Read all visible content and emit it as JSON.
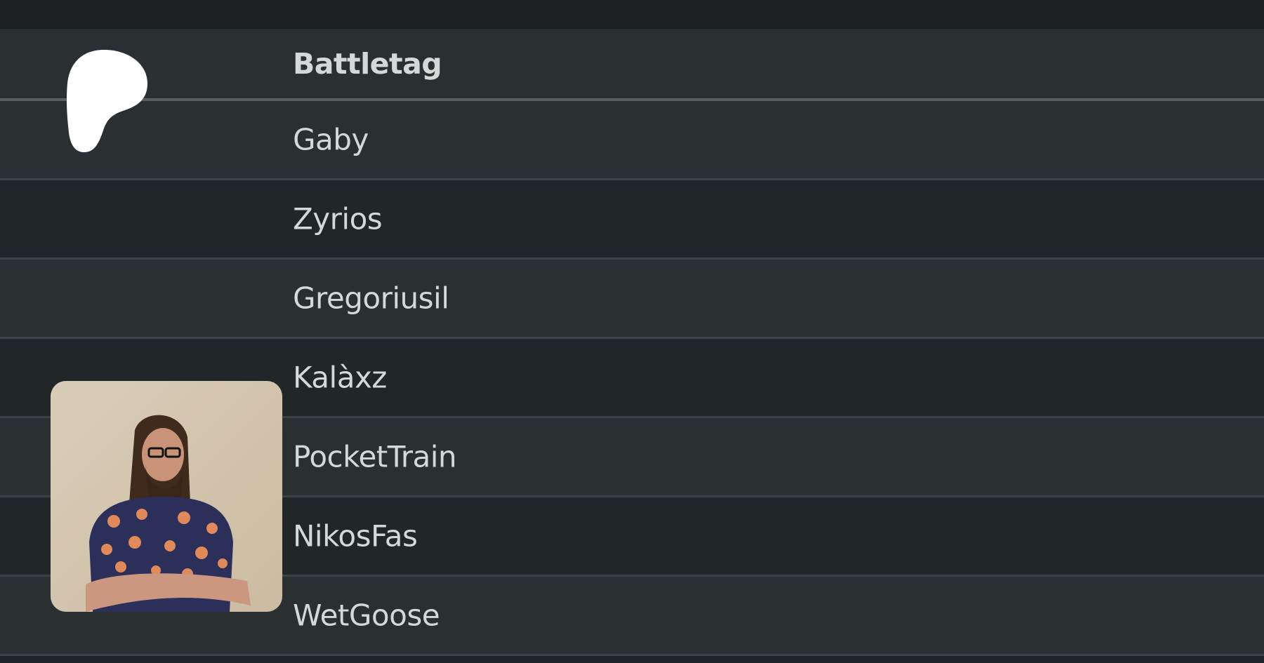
{
  "table": {
    "header": "Battletag",
    "rows": [
      "Gaby",
      "Zyrios",
      "Gregoriusil",
      "Kalàxz",
      "PocketTrain",
      "NikosFas",
      "WetGoose"
    ]
  },
  "icons": {
    "logo": "patreon-logo-icon",
    "photo": "user-photo"
  },
  "colors": {
    "row_light": "#2a2f32",
    "row_dark": "#212628",
    "text": "#d6d8d8",
    "divider": "#3a4346"
  }
}
